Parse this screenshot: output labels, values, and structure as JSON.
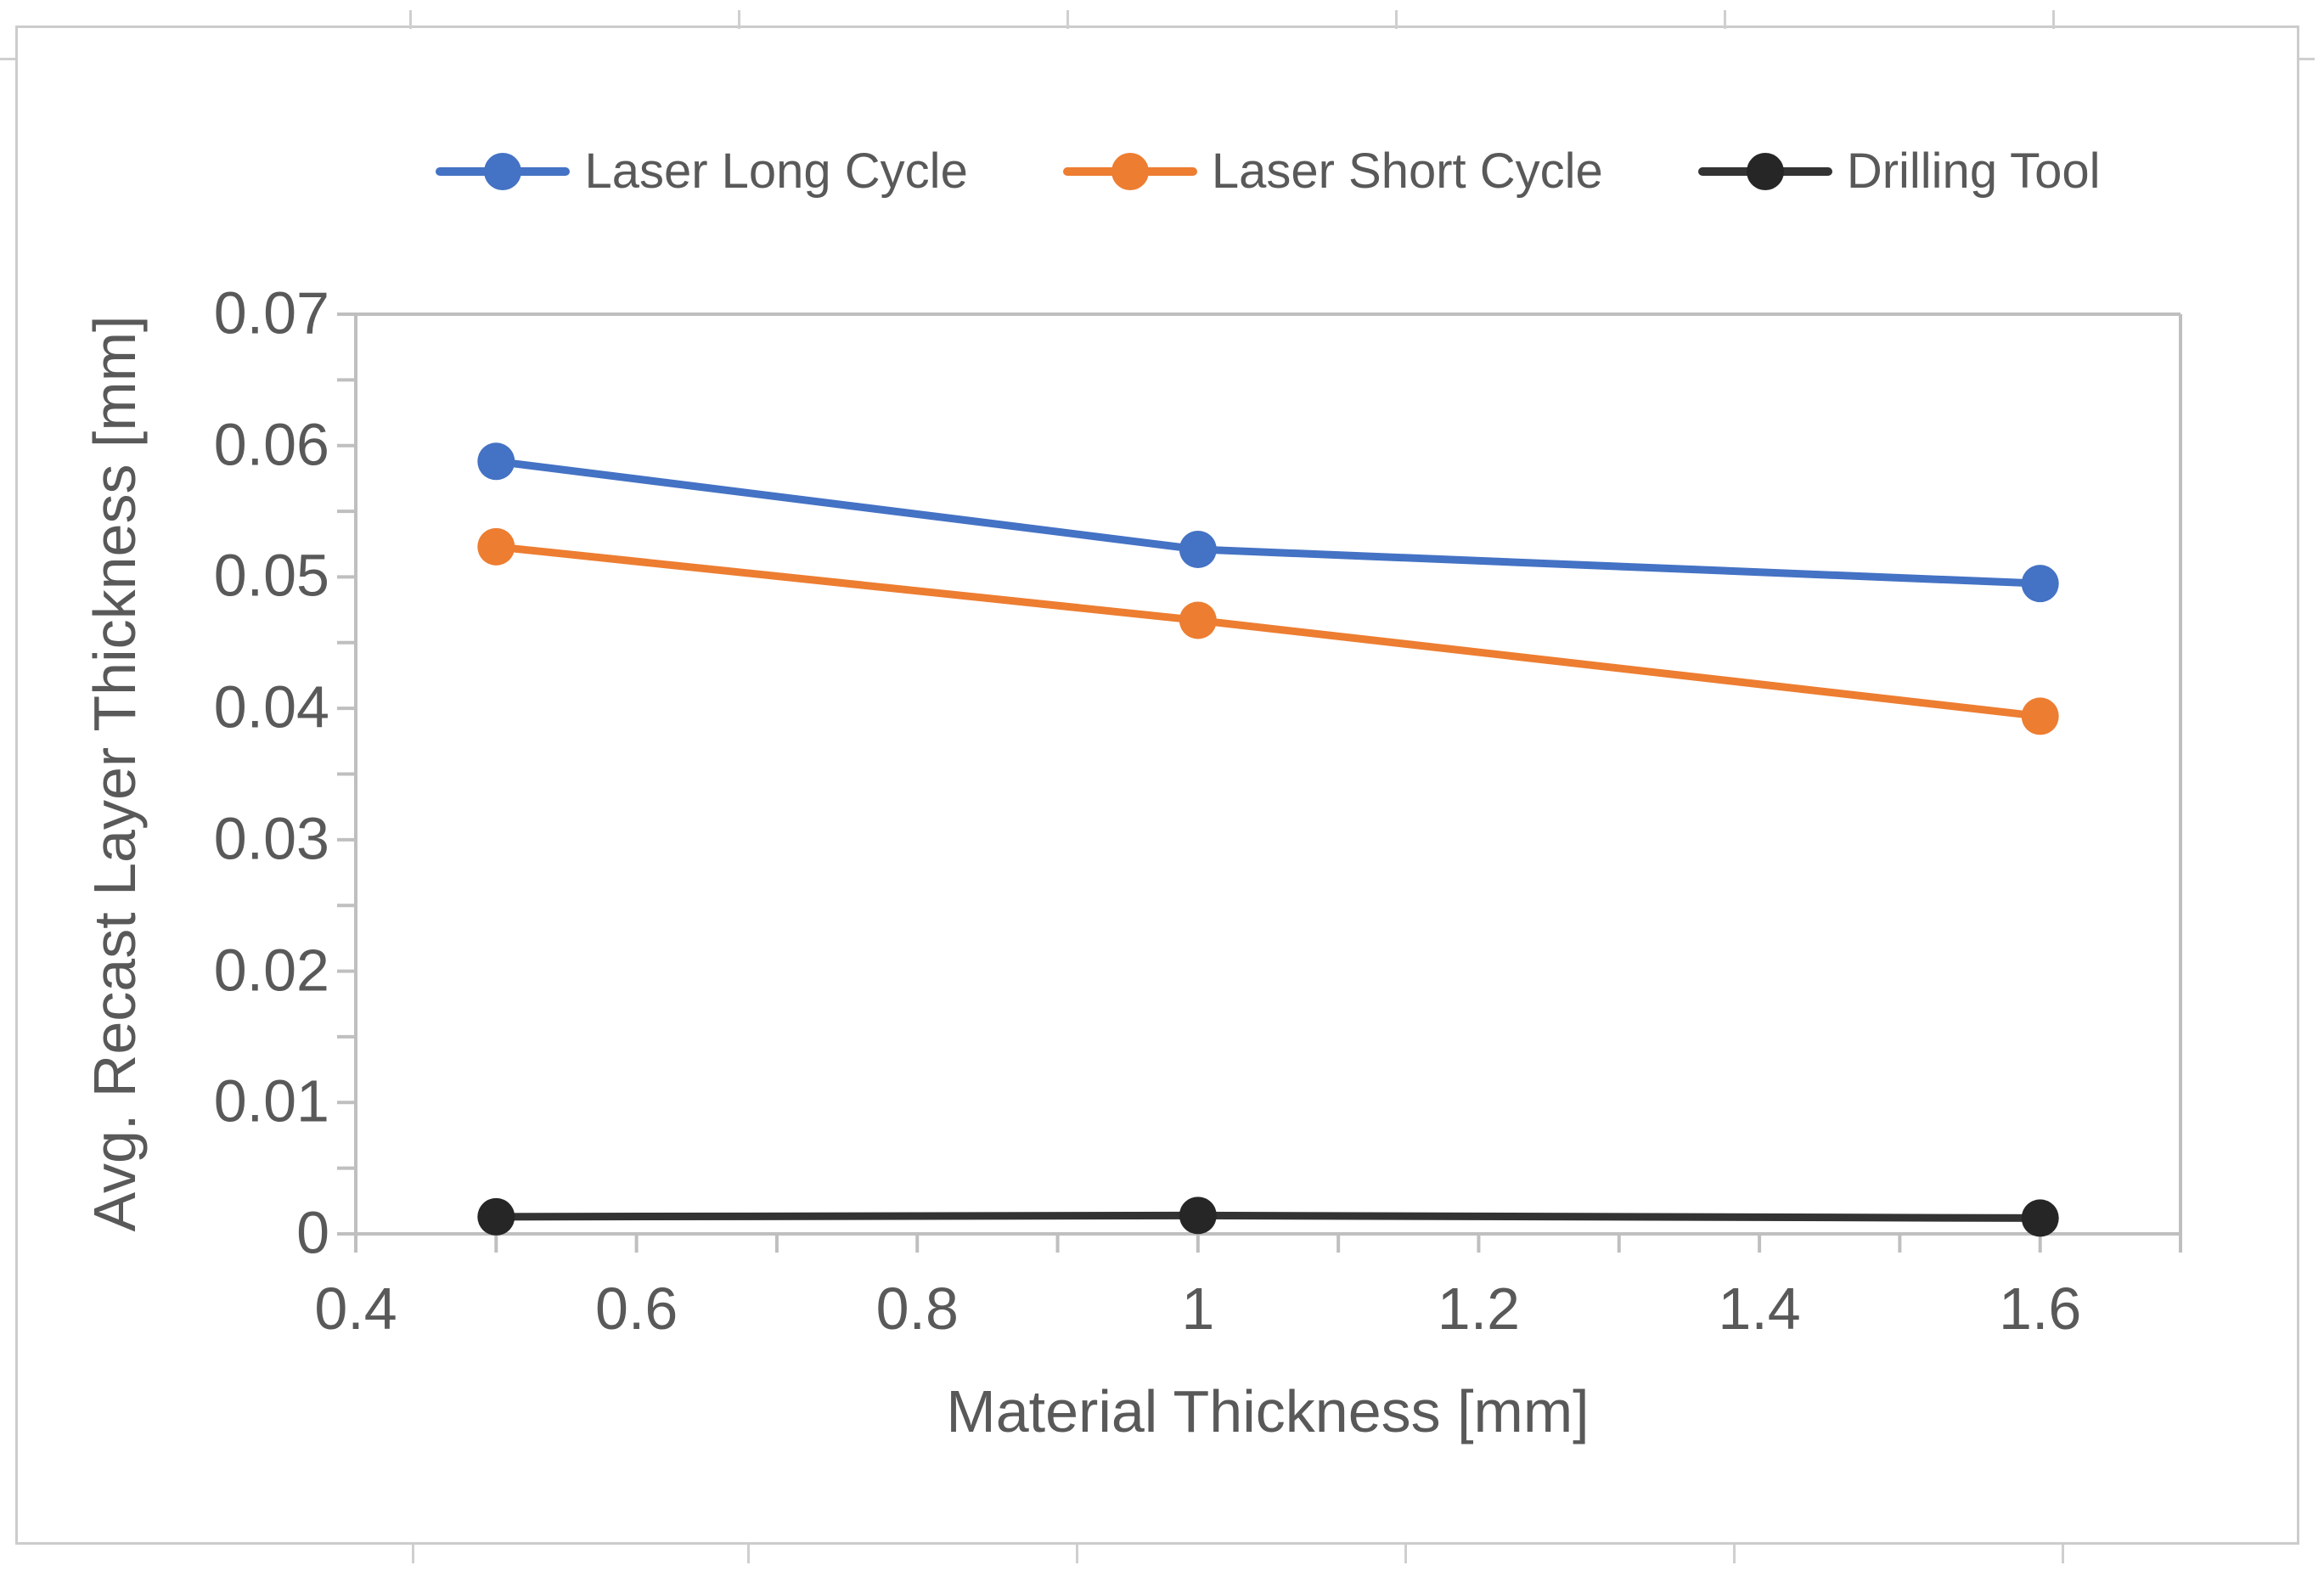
{
  "chart_data": {
    "type": "line",
    "title": "",
    "xlabel": "Material Thickness [mm]",
    "ylabel": "Avg. Recast Layer Thickness [mm]",
    "xlim": [
      0.4,
      1.7
    ],
    "ylim": [
      0,
      0.07
    ],
    "x_ticks": [
      0.4,
      0.6,
      0.8,
      1.0,
      1.2,
      1.4,
      1.6
    ],
    "x_tick_labels": [
      "0.4",
      "0.6",
      "0.8",
      "1",
      "1.2",
      "1.4",
      "1.6"
    ],
    "y_ticks": [
      0.07,
      0.06,
      0.05,
      0.04,
      0.03,
      0.02,
      0.01,
      0
    ],
    "y_tick_labels": [
      "0.07",
      "0.06",
      "0.05",
      "0.04",
      "0.03",
      "0.02",
      "0.01",
      "0"
    ],
    "x_minor_step": 0.1,
    "y_minor_step": 0.005,
    "grid": false,
    "legend_position": "top",
    "x": [
      0.5,
      1.0,
      1.6
    ],
    "series": [
      {
        "name": "Laser Long Cycle",
        "color": "#4472C4",
        "values": [
          0.0588,
          0.0521,
          0.0495
        ]
      },
      {
        "name": "Laser Short Cycle",
        "color": "#ED7D31",
        "values": [
          0.0523,
          0.0467,
          0.0394
        ]
      },
      {
        "name": "Drilling Tool",
        "color": "#333333",
        "marker_color": "#262626",
        "values": [
          0.0013,
          0.0014,
          0.0012
        ]
      }
    ],
    "axis_color": "#BFBFBF",
    "text_color": "#595959"
  }
}
